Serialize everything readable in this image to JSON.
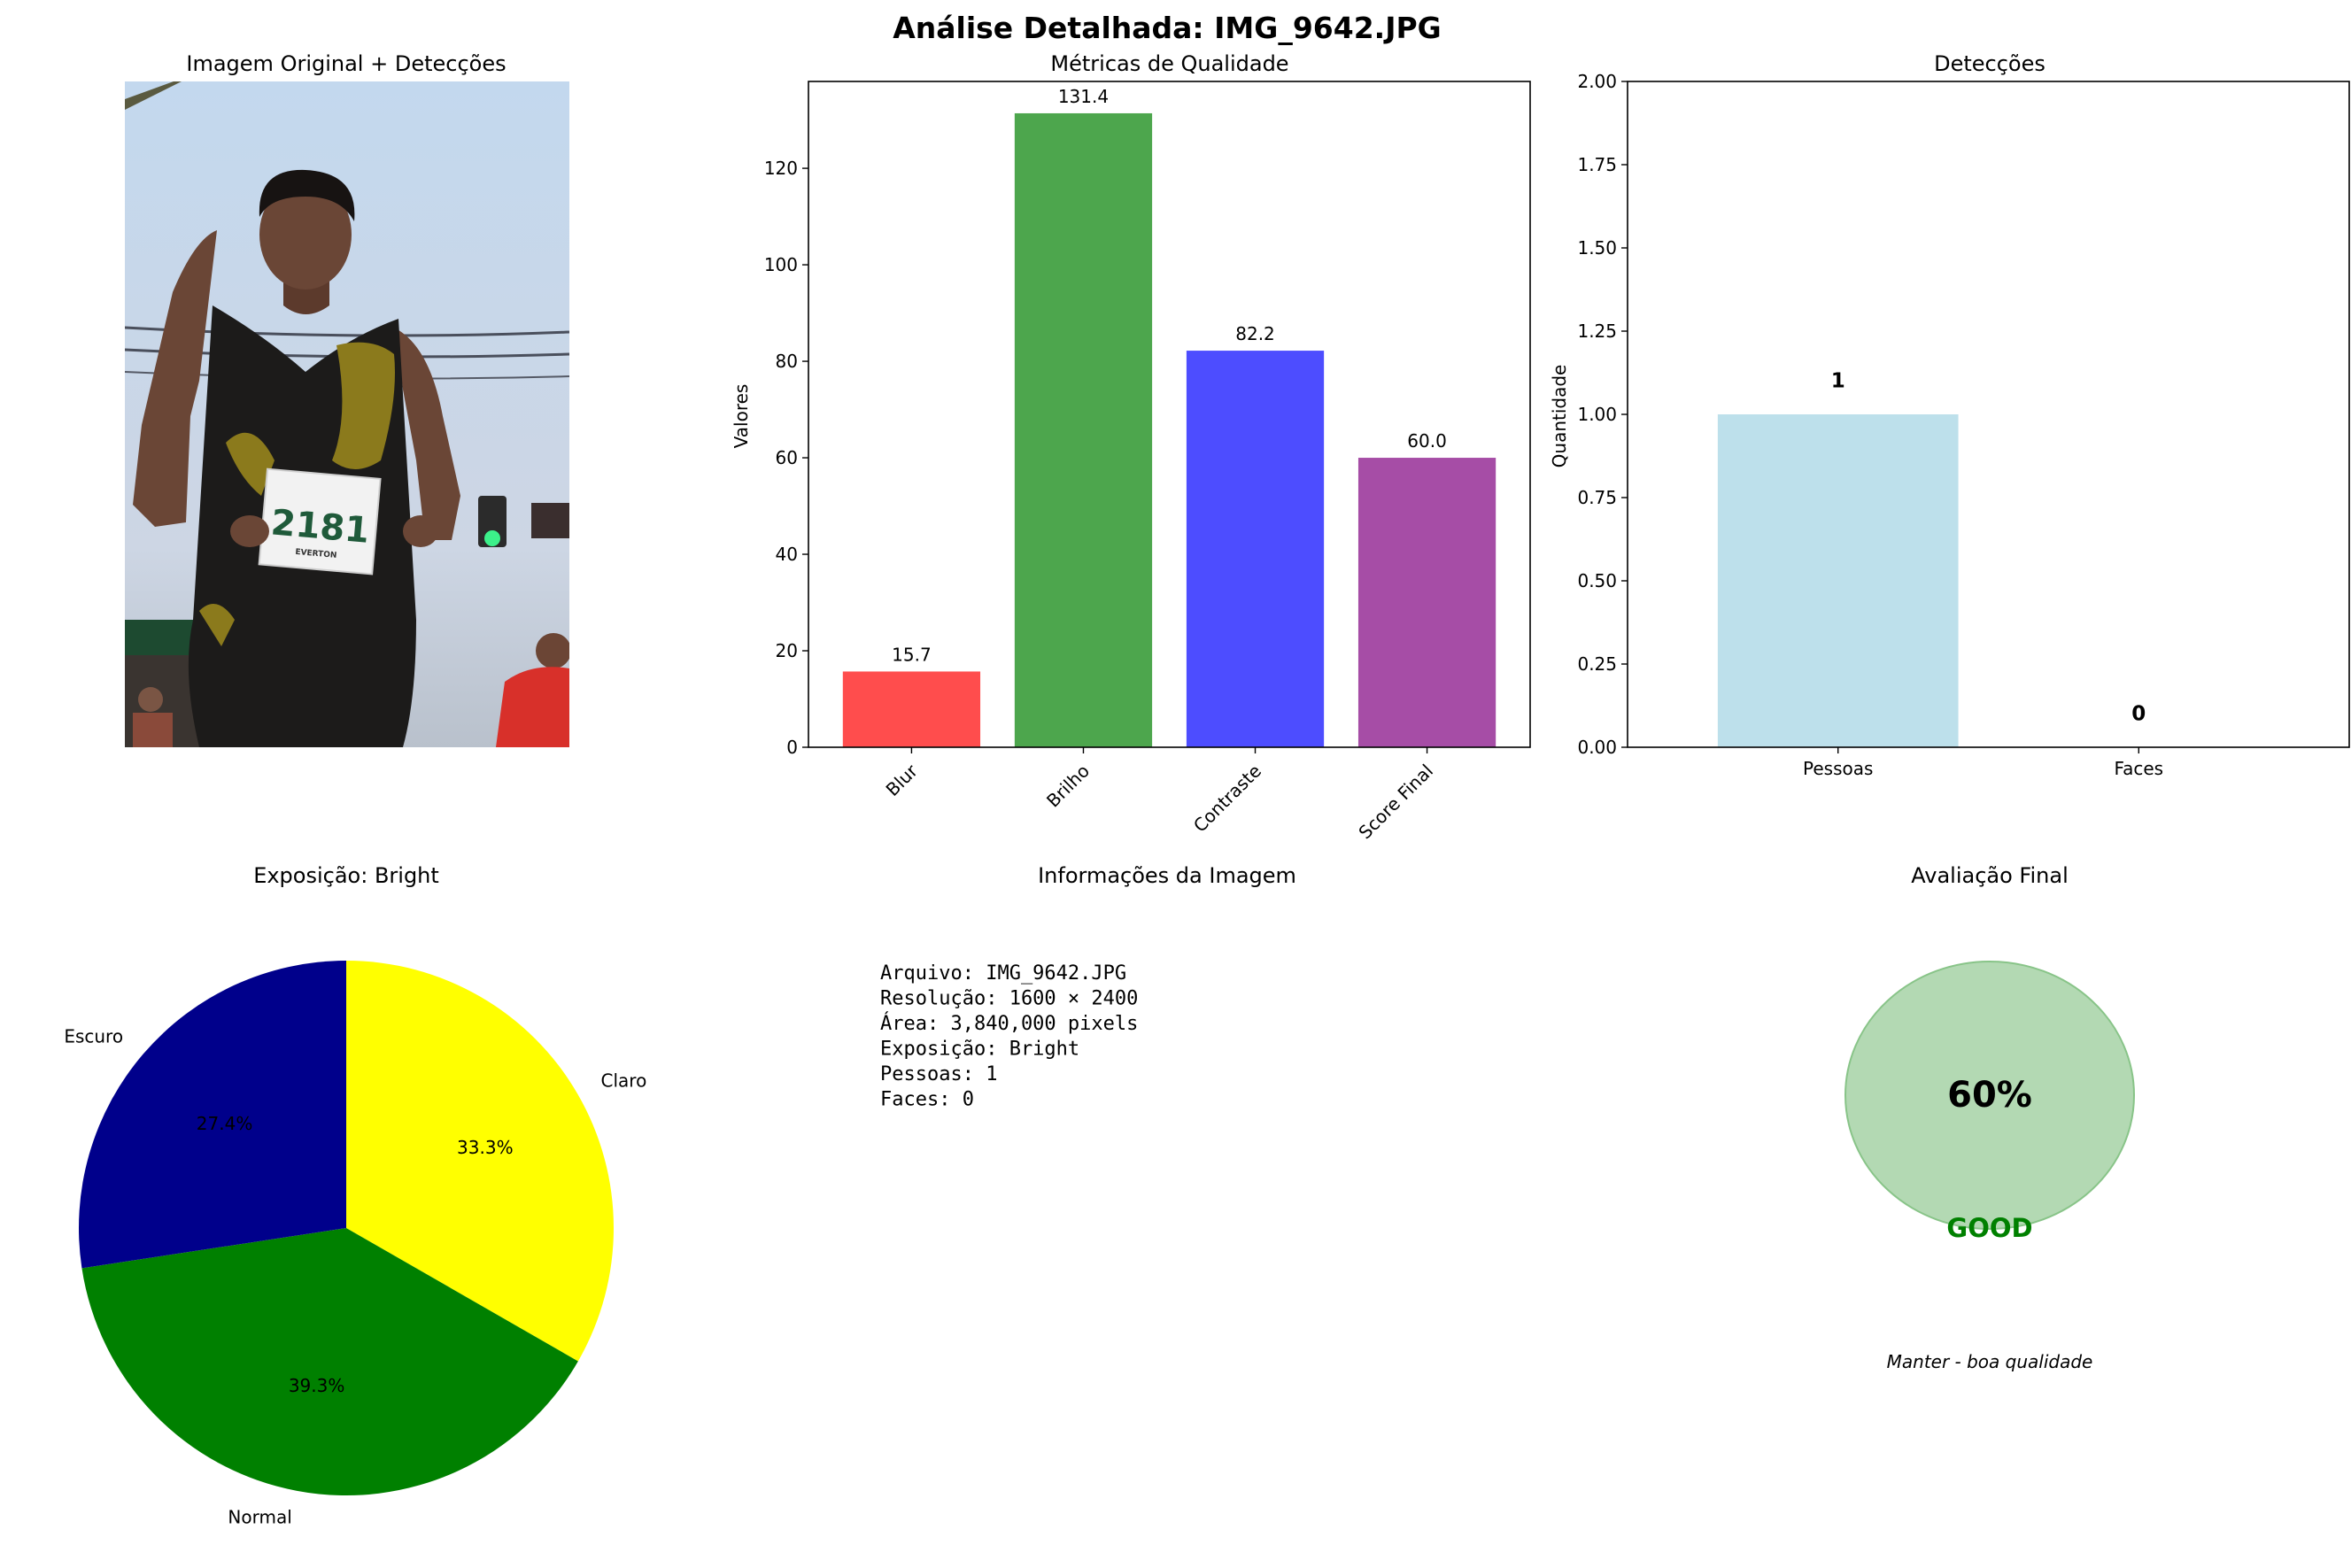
{
  "suptitle": "Análise Detalhada: IMG_9642.JPG",
  "photo_panel": {
    "title": "Imagem Original + Detecções",
    "bib_number": "2181",
    "bib_name": "EVERTON"
  },
  "info_panel": {
    "title": "Informações da Imagem",
    "lines": [
      "Arquivo: IMG_9642.JPG",
      "Resolução: 1600 × 2400",
      "Área: 3,840,000 pixels",
      "Exposição: Bright",
      "Pessoas: 1",
      "Faces: 0"
    ]
  },
  "final_panel": {
    "title": "Avaliação Final",
    "score_text": "60%",
    "rating": "GOOD",
    "recommendation": "Manter - boa qualidade",
    "circle_color": "#b3d9b3",
    "rating_color": "#008000"
  },
  "chart_data": [
    {
      "type": "bar",
      "title": "Métricas de Qualidade",
      "xlabel": "",
      "ylabel": "Valores",
      "categories": [
        "Blur",
        "Brilho",
        "Contraste",
        "Score Final"
      ],
      "values": [
        15.7,
        131.4,
        82.2,
        60.0
      ],
      "value_labels": [
        "15.7",
        "131.4",
        "82.2",
        "60.0"
      ],
      "colors": [
        "#ff4d4d",
        "#4da64d",
        "#4d4dff",
        "#a64da6"
      ],
      "ylim": [
        0,
        138
      ],
      "yticks": [
        0,
        20,
        40,
        60,
        80,
        100,
        120
      ],
      "ytick_labels": [
        "0",
        "20",
        "40",
        "60",
        "80",
        "100",
        "120"
      ],
      "grid": false
    },
    {
      "type": "bar",
      "title": "Detecções",
      "xlabel": "",
      "ylabel": "Quantidade",
      "categories": [
        "Pessoas",
        "Faces"
      ],
      "values": [
        1,
        0
      ],
      "value_labels": [
        "1",
        "0"
      ],
      "colors": [
        "#add8e6",
        "#ffc0cb"
      ],
      "ylim": [
        0,
        2
      ],
      "yticks": [
        0,
        0.25,
        0.5,
        0.75,
        1.0,
        1.25,
        1.5,
        1.75,
        2.0
      ],
      "ytick_labels": [
        "0.00",
        "0.25",
        "0.50",
        "0.75",
        "1.00",
        "1.25",
        "1.50",
        "1.75",
        "2.00"
      ],
      "grid": false
    },
    {
      "type": "pie",
      "title": "Exposição: Bright",
      "labels": [
        "Claro",
        "Normal",
        "Escuro"
      ],
      "values": [
        33.3,
        39.3,
        27.4
      ],
      "pct_labels": [
        "33.3%",
        "39.3%",
        "27.4%"
      ],
      "colors": [
        "#ffff00",
        "#008000",
        "#00008b"
      ]
    }
  ]
}
